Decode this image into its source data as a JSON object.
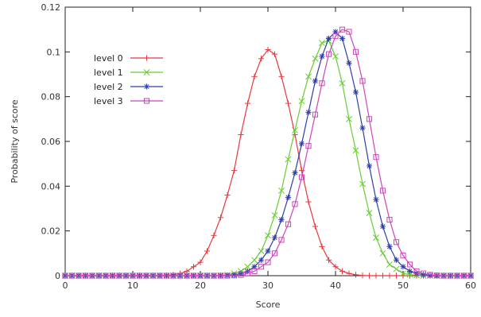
{
  "chart_data": {
    "type": "line",
    "title": "",
    "xlabel": "Score",
    "ylabel": "Probability of score",
    "xlim": [
      0,
      60
    ],
    "ylim": [
      0,
      0.12
    ],
    "xticks": [
      "0",
      "10",
      "20",
      "30",
      "40",
      "50",
      "60"
    ],
    "yticks": [
      "0",
      "0.02",
      "0.04",
      "0.06",
      "0.08",
      "0.1",
      "0.12"
    ],
    "grid": false,
    "legend_position": "top-left",
    "series": [
      {
        "name": "level 0",
        "color": "#e8383d",
        "marker": "plus",
        "x": [
          0,
          1,
          2,
          3,
          4,
          5,
          6,
          7,
          8,
          9,
          10,
          11,
          12,
          13,
          14,
          15,
          16,
          17,
          18,
          19,
          20,
          21,
          22,
          23,
          24,
          25,
          26,
          27,
          28,
          29,
          30,
          31,
          32,
          33,
          34,
          35,
          36,
          37,
          38,
          39,
          40,
          41,
          42,
          43,
          44,
          45,
          46,
          47,
          48,
          49,
          50,
          51,
          52,
          53,
          54,
          55,
          56,
          57,
          58,
          59,
          60
        ],
        "values": [
          0,
          0,
          0,
          0,
          0,
          0,
          0,
          0,
          0,
          0,
          0,
          0,
          0,
          0,
          0,
          0.0001,
          0.0004,
          0.001,
          0.002,
          0.004,
          0.006,
          0.011,
          0.018,
          0.026,
          0.036,
          0.047,
          0.063,
          0.077,
          0.089,
          0.097,
          0.101,
          0.099,
          0.089,
          0.077,
          0.063,
          0.047,
          0.033,
          0.022,
          0.013,
          0.007,
          0.004,
          0.002,
          0.001,
          0.0004,
          0.0001,
          0,
          0,
          0,
          0,
          0,
          0,
          0,
          0,
          0,
          0,
          0,
          0,
          0,
          0,
          0,
          0
        ]
      },
      {
        "name": "level 1",
        "color": "#66cc33",
        "marker": "x",
        "x": [
          0,
          1,
          2,
          3,
          4,
          5,
          6,
          7,
          8,
          9,
          10,
          11,
          12,
          13,
          14,
          15,
          16,
          17,
          18,
          19,
          20,
          21,
          22,
          23,
          24,
          25,
          26,
          27,
          28,
          29,
          30,
          31,
          32,
          33,
          34,
          35,
          36,
          37,
          38,
          39,
          40,
          41,
          42,
          43,
          44,
          45,
          46,
          47,
          48,
          49,
          50,
          51,
          52,
          53,
          54,
          55,
          56,
          57,
          58,
          59,
          60
        ],
        "values": [
          0,
          0,
          0,
          0,
          0,
          0,
          0,
          0,
          0,
          0,
          0,
          0,
          0,
          0,
          0,
          0,
          0,
          0,
          0,
          0,
          0,
          0,
          0,
          0.0001,
          0.0003,
          0.001,
          0.002,
          0.004,
          0.007,
          0.011,
          0.018,
          0.027,
          0.038,
          0.052,
          0.065,
          0.078,
          0.089,
          0.097,
          0.104,
          0.105,
          0.098,
          0.086,
          0.07,
          0.056,
          0.041,
          0.028,
          0.017,
          0.01,
          0.005,
          0.003,
          0.001,
          0.0005,
          0.0002,
          0,
          0,
          0,
          0,
          0,
          0,
          0,
          0
        ]
      },
      {
        "name": "level 2",
        "color": "#2e3eaa",
        "marker": "star",
        "x": [
          0,
          1,
          2,
          3,
          4,
          5,
          6,
          7,
          8,
          9,
          10,
          11,
          12,
          13,
          14,
          15,
          16,
          17,
          18,
          19,
          20,
          21,
          22,
          23,
          24,
          25,
          26,
          27,
          28,
          29,
          30,
          31,
          32,
          33,
          34,
          35,
          36,
          37,
          38,
          39,
          40,
          41,
          42,
          43,
          44,
          45,
          46,
          47,
          48,
          49,
          50,
          51,
          52,
          53,
          54,
          55,
          56,
          57,
          58,
          59,
          60
        ],
        "values": [
          0,
          0,
          0,
          0,
          0,
          0,
          0,
          0,
          0,
          0,
          0,
          0,
          0,
          0,
          0,
          0,
          0,
          0,
          0,
          0,
          0,
          0,
          0,
          0,
          0.0001,
          0.0003,
          0.001,
          0.002,
          0.004,
          0.007,
          0.011,
          0.017,
          0.025,
          0.035,
          0.046,
          0.059,
          0.073,
          0.087,
          0.098,
          0.106,
          0.109,
          0.106,
          0.095,
          0.082,
          0.066,
          0.049,
          0.034,
          0.022,
          0.013,
          0.007,
          0.004,
          0.002,
          0.001,
          0.0004,
          0.0001,
          0,
          0,
          0,
          0,
          0,
          0
        ]
      },
      {
        "name": "level 3",
        "color": "#cc44bb",
        "marker": "square",
        "x": [
          0,
          1,
          2,
          3,
          4,
          5,
          6,
          7,
          8,
          9,
          10,
          11,
          12,
          13,
          14,
          15,
          16,
          17,
          18,
          19,
          20,
          21,
          22,
          23,
          24,
          25,
          26,
          27,
          28,
          29,
          30,
          31,
          32,
          33,
          34,
          35,
          36,
          37,
          38,
          39,
          40,
          41,
          42,
          43,
          44,
          45,
          46,
          47,
          48,
          49,
          50,
          51,
          52,
          53,
          54,
          55,
          56,
          57,
          58,
          59,
          60
        ],
        "values": [
          0,
          0,
          0,
          0,
          0,
          0,
          0,
          0,
          0,
          0,
          0,
          0,
          0,
          0,
          0,
          0,
          0,
          0,
          0,
          0,
          0,
          0,
          0,
          0,
          0,
          0.0001,
          0.0003,
          0.001,
          0.002,
          0.004,
          0.006,
          0.01,
          0.016,
          0.023,
          0.032,
          0.044,
          0.058,
          0.072,
          0.086,
          0.099,
          0.107,
          0.11,
          0.109,
          0.1,
          0.087,
          0.07,
          0.053,
          0.038,
          0.025,
          0.015,
          0.009,
          0.005,
          0.002,
          0.001,
          0.0004,
          0.0001,
          0,
          0,
          0,
          0,
          0
        ]
      }
    ]
  }
}
